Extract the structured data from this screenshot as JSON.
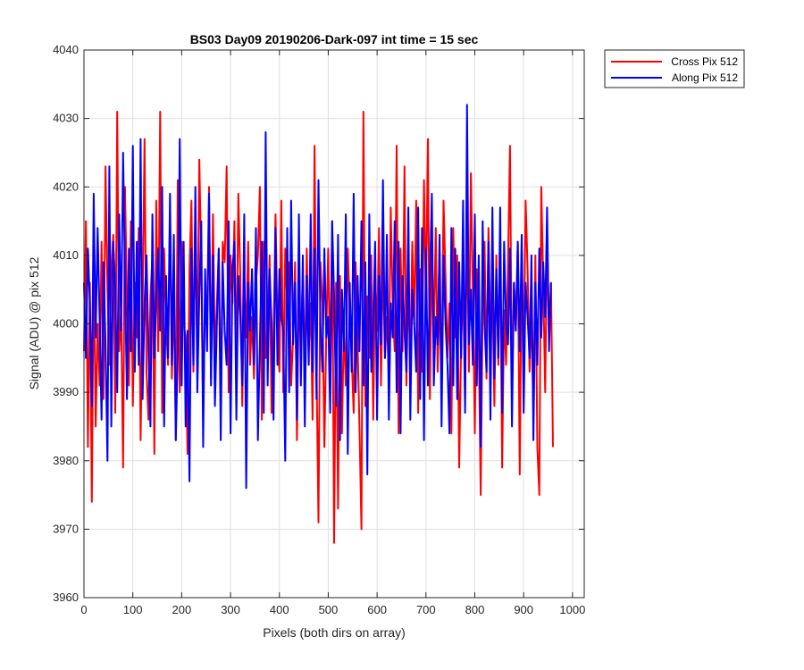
{
  "chart_data": {
    "type": "line",
    "title": "BS03 Day09 20190206-Dark-097 int time = 15 sec",
    "xlabel": "Pixels (both dirs on array)",
    "ylabel": "Signal (ADU) @ pix 512",
    "xlim": [
      0,
      1024
    ],
    "ylim": [
      3960,
      4040
    ],
    "xticks": [
      0,
      100,
      200,
      300,
      400,
      500,
      600,
      700,
      800,
      900,
      1000
    ],
    "yticks": [
      3960,
      3970,
      3980,
      3990,
      4000,
      4010,
      4020,
      4030,
      4040
    ],
    "grid": true,
    "legend_position": "outside-top-right",
    "x_step": 4,
    "series": [
      {
        "name": "Cross Pix 512",
        "color": "#ff0000",
        "values": [
          3996,
          4015,
          3982,
          4006,
          3974,
          4010,
          3985,
          4000,
          3991,
          4012,
          3989,
          4023,
          4005,
          3994,
          4008,
          4013,
          3987,
          4031,
          3996,
          4002,
          3979,
          4020,
          4004,
          3991,
          4015,
          3988,
          4006,
          3998,
          4014,
          3983,
          4002,
          4027,
          3993,
          3986,
          4004,
          4010,
          3981,
          4018,
          3996,
          4031,
          3987,
          4011,
          4000,
          3994,
          4016,
          3992,
          4005,
          3983,
          4021,
          3990,
          4012,
          4000,
          3998,
          3981,
          4008,
          4018,
          3993,
          4014,
          3996,
          4024,
          4009,
          3986,
          4005,
          4001,
          4020,
          3992,
          4016,
          3995,
          4003,
          4011,
          3988,
          4012,
          4009,
          4023,
          3990,
          4010,
          4003,
          4015,
          3993,
          4019,
          4007,
          3988,
          4006,
          3998,
          4012,
          3994,
          4001,
          3992,
          4006,
          4010,
          4020,
          3986,
          4012,
          3995,
          3999,
          4010,
          3987,
          3998,
          4016,
          4000,
          3993,
          4018,
          3990,
          4011,
          4003,
          4009,
          3991,
          3998,
          4009,
          3983,
          4005,
          3997,
          4008,
          3992,
          4011,
          3996,
          4003,
          3986,
          4026,
          3994,
          3971,
          4009,
          4003,
          3982,
          3999,
          4011,
          3993,
          4015,
          3968,
          4006,
          3973,
          4007,
          3984,
          4000,
          3991,
          4011,
          4002,
          3995,
          3987,
          4009,
          3997,
          3985,
          3970,
          4031,
          3988,
          4004,
          3995,
          4010,
          3986,
          4007,
          3999,
          4014,
          3991,
          4010,
          3995,
          4001,
          3992,
          4017,
          4003,
          3996,
          4026,
          3984,
          4011,
          3996,
          4023,
          3991,
          4006,
          3994,
          4012,
          4000,
          4018,
          3987,
          4008,
          3993,
          4021,
          4003,
          4027,
          3989,
          4011,
          3998,
          4014,
          3993,
          4005,
          3991,
          4018,
          4007,
          3995,
          4003,
          3984,
          4014,
          3998,
          4010,
          3979,
          3997,
          4006,
          3988,
          4016,
          3993,
          4022,
          4005,
          3984,
          4008,
          3997,
          3975,
          4003,
          4012,
          3992,
          4014,
          3999,
          4005,
          3988,
          4010,
          3994,
          4013,
          3979,
          4002,
          3994,
          4009,
          4026,
          3989,
          4006,
          3999,
          4012,
          3978,
          4011,
          3994,
          4018,
          4008,
          3993,
          4002,
          3987,
          4010,
          3982,
          3975,
          4020,
          4006,
          3990,
          4014,
          3998,
          4006,
          3982
        ]
      },
      {
        "name": "Along Pix 512",
        "color": "#0000ff",
        "values": [
          4006,
          3995,
          4011,
          4003,
          3988,
          4019,
          3998,
          4014,
          4001,
          3986,
          4009,
          3997,
          3980,
          4023,
          3985,
          4012,
          4005,
          3990,
          4016,
          3999,
          4025,
          4007,
          3989,
          4011,
          3996,
          4026,
          3993,
          4012,
          3994,
          4027,
          3989,
          4003,
          4010,
          3996,
          3985,
          4016,
          3995,
          4004,
          4011,
          3999,
          4020,
          3985,
          4007,
          3995,
          4019,
          3994,
          4013,
          3983,
          3996,
          4027,
          3991,
          4012,
          3985,
          3999,
          3977,
          4011,
          3994,
          4020,
          3990,
          4004,
          4015,
          3982,
          4008,
          3996,
          4019,
          3991,
          4010,
          3988,
          4000,
          4011,
          3983,
          4009,
          3999,
          3994,
          4015,
          3984,
          4008,
          4012,
          3986,
          4007,
          4001,
          3991,
          4016,
          3976,
          4006,
          3999,
          4008,
          3994,
          4014,
          3983,
          3997,
          4012,
          3987,
          4028,
          3991,
          4008,
          4000,
          3986,
          4014,
          3994,
          4008,
          4001,
          3999,
          3980,
          4014,
          3990,
          4018,
          3997,
          4006,
          3986,
          4016,
          3991,
          4010,
          3985,
          4007,
          3994,
          4016,
          3993,
          4011,
          3989,
          4021,
          4000,
          3993,
          4011,
          3998,
          4001,
          3987,
          4015,
          4004,
          3988,
          4013,
          3983,
          4005,
          3996,
          4016,
          3981,
          4006,
          3993,
          4019,
          3990,
          4007,
          3996,
          4015,
          3991,
          4009,
          3978,
          4016,
          3993,
          4000,
          4012,
          3986,
          4007,
          3997,
          4021,
          3995,
          4013,
          3986,
          4003,
          3998,
          4015,
          3990,
          4012,
          3984,
          4007,
          3999,
          3993,
          4017,
          3986,
          4005,
          4000,
          3993,
          4017,
          3989,
          4014,
          3983,
          4011,
          3991,
          4006,
          4019,
          3991,
          4001,
          3997,
          4013,
          3985,
          4010,
          4000,
          3994,
          3984,
          4014,
          3991,
          4011,
          3989,
          4009,
          3995,
          4018,
          3987,
          4032,
          3997,
          4005,
          3994,
          4016,
          3991,
          4010,
          3982,
          4015,
          4000,
          3993,
          4012,
          3986,
          4017,
          3992,
          4008,
          3995,
          4017,
          3987,
          4012,
          4000,
          3997,
          4011,
          3985,
          4006,
          3999,
          4012,
          3996,
          4013,
          3987,
          4006,
          4001,
          3995,
          4010,
          3983,
          4006,
          3994,
          4011,
          3998,
          4009,
          4001,
          4017,
          3996,
          4006
        ]
      }
    ]
  }
}
